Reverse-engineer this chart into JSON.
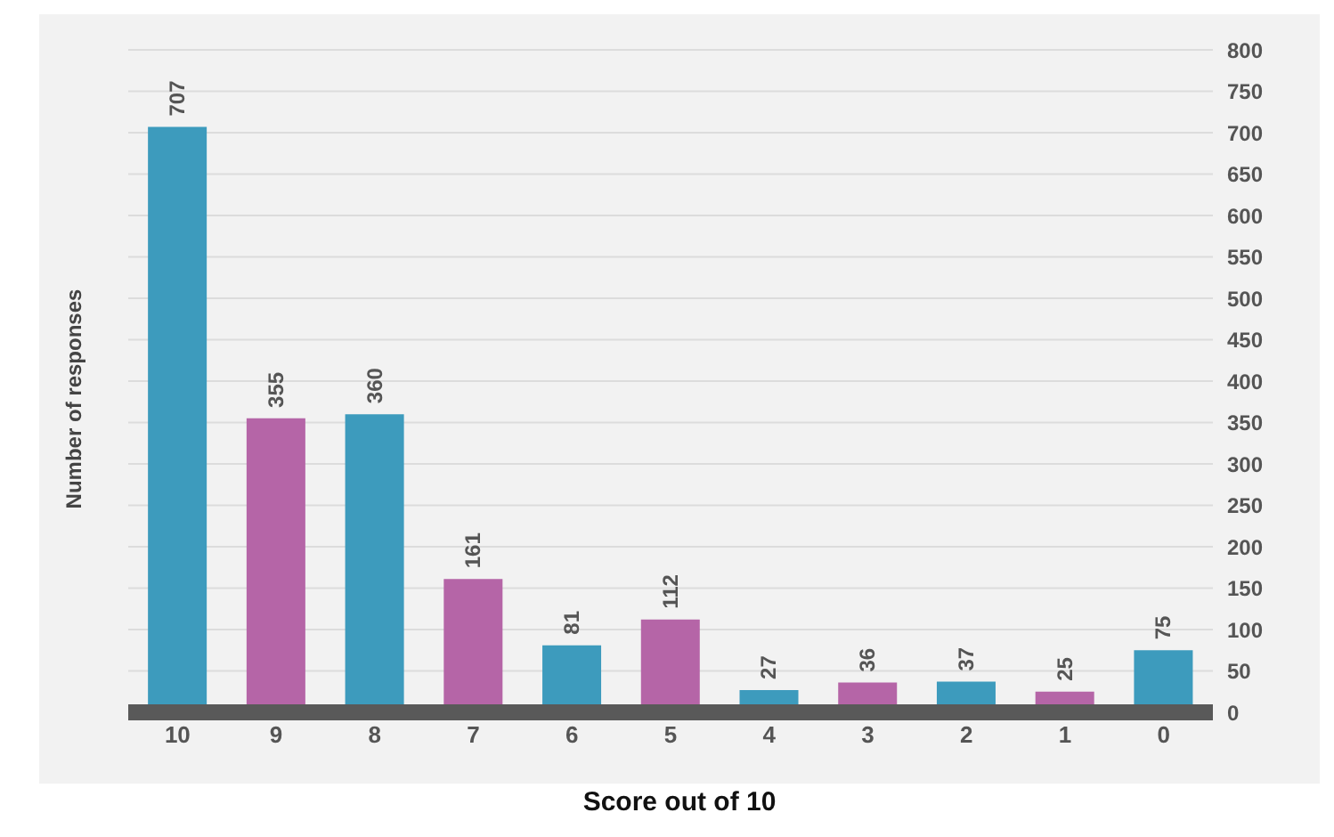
{
  "chart_data": {
    "type": "bar",
    "xlabel": "Score out of 10",
    "ylabel": "Number of responses",
    "categories": [
      "10",
      "9",
      "8",
      "7",
      "6",
      "5",
      "4",
      "3",
      "2",
      "1",
      "0"
    ],
    "values": [
      707,
      355,
      360,
      161,
      81,
      112,
      27,
      36,
      37,
      25,
      75
    ],
    "colors": [
      "#3d9bbd",
      "#b565a7",
      "#3d9bbd",
      "#b565a7",
      "#3d9bbd",
      "#b565a7",
      "#3d9bbd",
      "#b565a7",
      "#3d9bbd",
      "#b565a7",
      "#3d9bbd"
    ],
    "ylim": [
      0,
      800
    ],
    "yticks": [
      0,
      50,
      100,
      150,
      200,
      250,
      300,
      350,
      400,
      450,
      500,
      550,
      600,
      650,
      700,
      750,
      800
    ],
    "grid": "y",
    "data_labels": true
  }
}
